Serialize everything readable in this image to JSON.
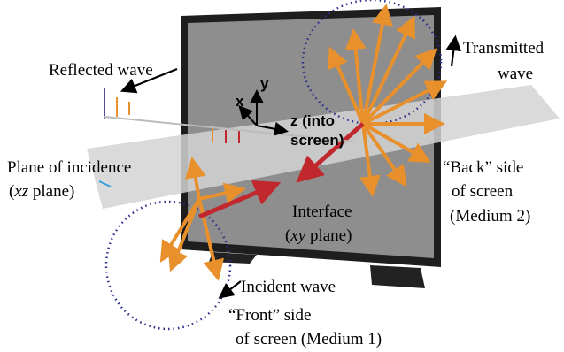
{
  "labels": {
    "reflected_wave": "Reflected wave",
    "transmitted_wave": [
      "Transmitted",
      "wave"
    ],
    "axis_x": "x",
    "axis_y": "y",
    "axis_z": [
      "z (into",
      "screen)"
    ],
    "plane_of_incidence": {
      "line1": "Plane of incidence",
      "line2": [
        "(",
        "xz",
        " plane)"
      ]
    },
    "back_side": [
      "“Back” side",
      "of screen",
      "(Medium 2)"
    ],
    "interface": {
      "line1": "Interface",
      "line2": [
        "(",
        "xy",
        " plane)"
      ]
    },
    "incident_wave": "Incident wave",
    "front_side": [
      "“Front” side",
      "of screen (Medium 1)"
    ]
  }
}
